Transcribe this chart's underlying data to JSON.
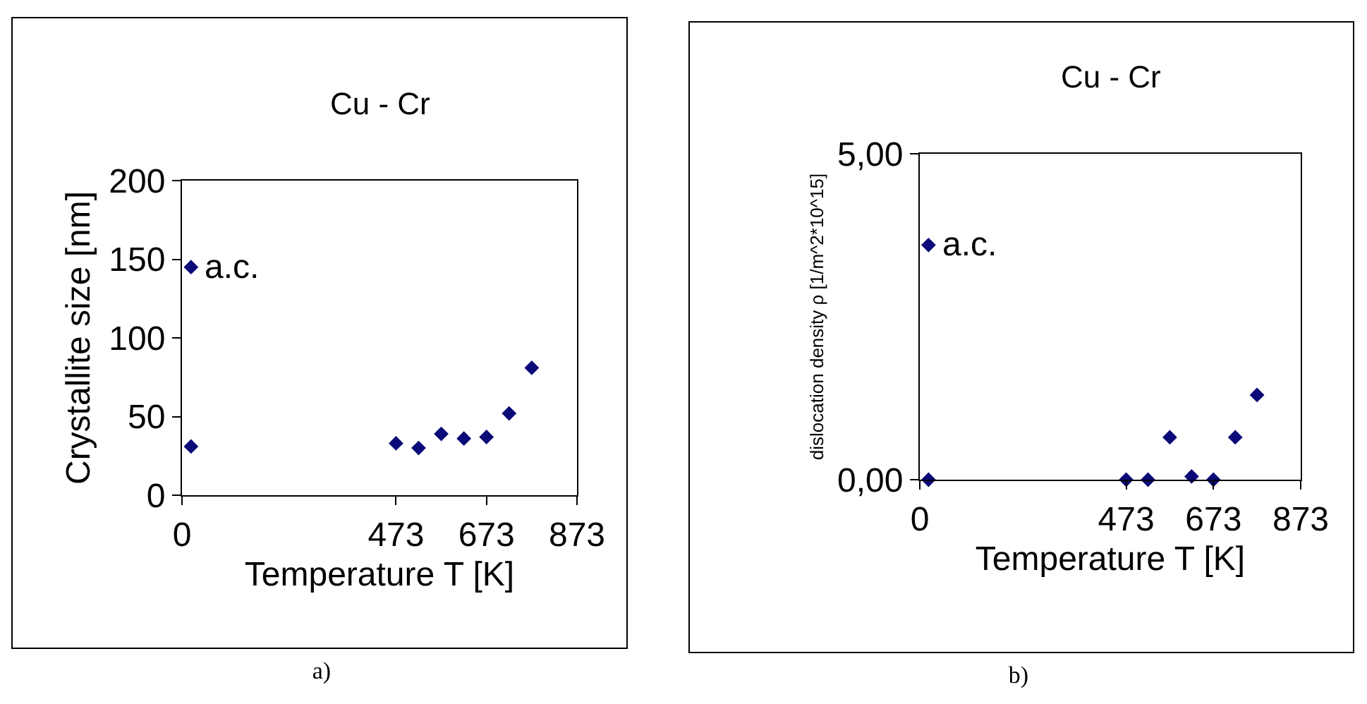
{
  "chart_data": [
    {
      "type": "scatter",
      "title": "Cu - Cr",
      "xlabel": "Temperature T [K]",
      "ylabel": "Crystallite size [nm]",
      "x": [
        20,
        20,
        473,
        523,
        573,
        623,
        673,
        723,
        773
      ],
      "series": [
        {
          "color": "#0a0a78",
          "values": [
            145,
            31,
            33,
            30,
            39,
            36,
            37,
            52,
            81
          ]
        }
      ],
      "xlim": [
        0,
        873
      ],
      "xticks": [
        0,
        473,
        673,
        873
      ],
      "ylim": [
        0,
        200
      ],
      "yticks": [
        0,
        50,
        100,
        150,
        200
      ],
      "marker": "diamond",
      "grid": false,
      "annotations": [
        {
          "text": "a.c.",
          "x": 20,
          "y": 145
        },
        "a)"
      ]
    },
    {
      "type": "scatter",
      "title": "Cu - Cr",
      "xlabel": "Temperature T [K]",
      "ylabel": "dislocation density ρ [1/m^2*10^15]",
      "x": [
        20,
        20,
        473,
        523,
        573,
        623,
        673,
        723,
        773
      ],
      "series": [
        {
          "color": "#0a0a78",
          "values": [
            3.6,
            0,
            0,
            0,
            0.65,
            0.05,
            0,
            0.65,
            1.3
          ]
        }
      ],
      "xlim": [
        0,
        873
      ],
      "xticks": [
        0,
        473,
        673,
        873
      ],
      "ylim": [
        0,
        5
      ],
      "yticks": [
        {
          "value": 0,
          "label": "0,00"
        },
        {
          "value": 5,
          "label": "5,00"
        }
      ],
      "marker": "diamond",
      "grid": false,
      "annotations": [
        {
          "text": "a.c.",
          "x": 20,
          "y": 3.6
        },
        "b)"
      ]
    }
  ]
}
